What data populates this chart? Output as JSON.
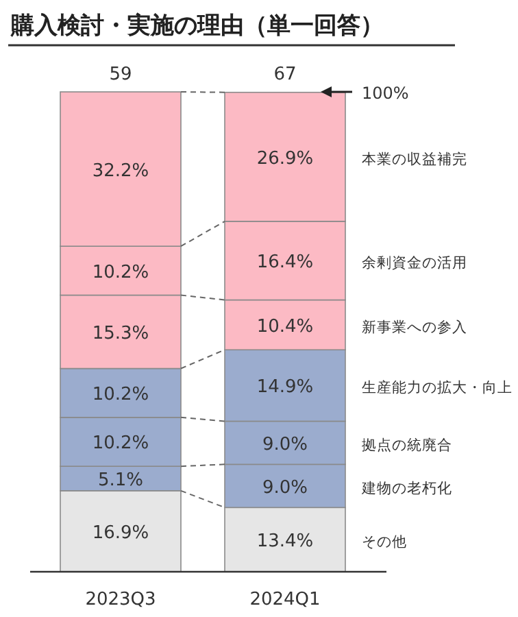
{
  "chart_data": {
    "type": "bar",
    "stacked": true,
    "title": "購入検討・実施の理由（単一回答）",
    "categories": [
      "2023Q3",
      "2024Q1"
    ],
    "series": [
      {
        "name": "その他",
        "color": "#e6e6e6",
        "values": [
          16.9,
          13.4
        ],
        "value_labels": [
          "16.9%",
          "13.4%"
        ]
      },
      {
        "name": "建物の老朽化",
        "color": "#9bacce",
        "values": [
          5.1,
          9.0
        ],
        "value_labels": [
          "5.1%",
          "9.0%"
        ]
      },
      {
        "name": "拠点の統廃合",
        "color": "#9bacce",
        "values": [
          10.2,
          9.0
        ],
        "value_labels": [
          "10.2%",
          "9.0%"
        ]
      },
      {
        "name": "生産能力の拡大・向上",
        "color": "#9bacce",
        "values": [
          10.2,
          14.9
        ],
        "value_labels": [
          "10.2%",
          "14.9%"
        ]
      },
      {
        "name": "新事業への参入",
        "color": "#fcbac4",
        "values": [
          15.3,
          10.4
        ],
        "value_labels": [
          "15.3%",
          "10.4%"
        ]
      },
      {
        "name": "余剰資金の活用",
        "color": "#fcbac4",
        "values": [
          10.2,
          16.4
        ],
        "value_labels": [
          "10.2%",
          "16.4%"
        ]
      },
      {
        "name": "本業の収益補完",
        "color": "#fcbac4",
        "values": [
          32.2,
          26.9
        ],
        "value_labels": [
          "32.2%",
          "26.9%"
        ]
      }
    ],
    "legend": "right",
    "annotations": [
      "59",
      "67",
      "100%"
    ]
  }
}
